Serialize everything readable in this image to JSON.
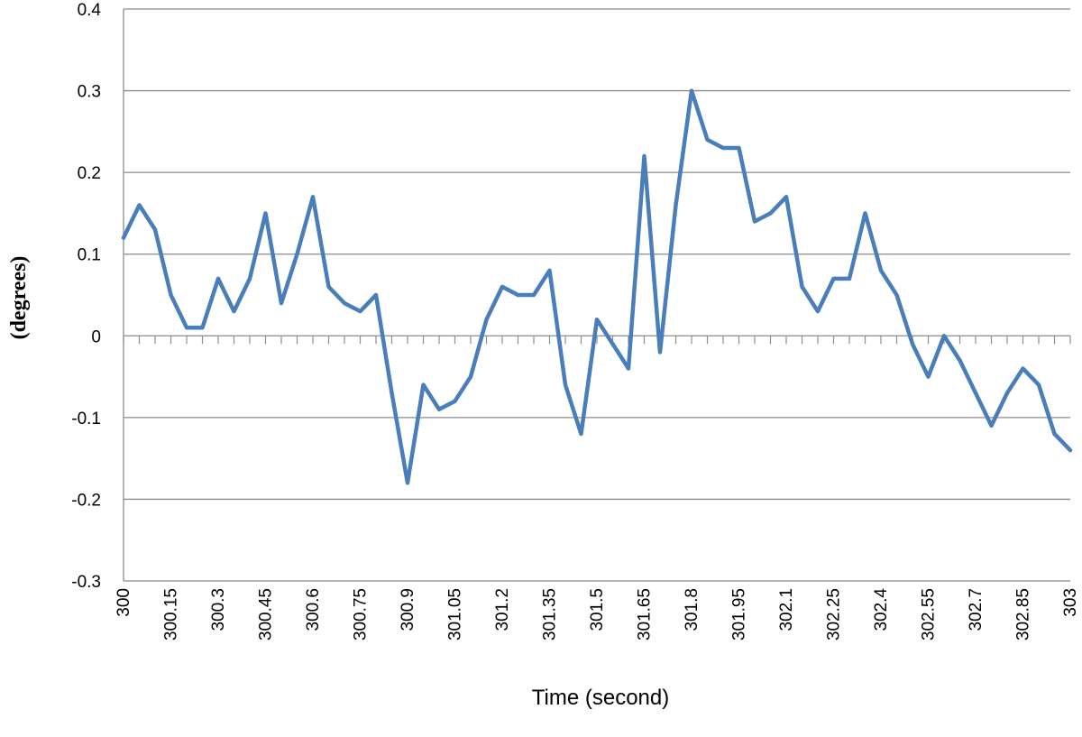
{
  "chart_data": {
    "type": "line",
    "title": "",
    "xlabel": "Time (second)",
    "ylabel": "(degrees)",
    "ylim": [
      -0.3,
      0.4
    ],
    "yticks": [
      -0.3,
      -0.2,
      -0.1,
      0,
      0.1,
      0.2,
      0.3,
      0.4
    ],
    "ytick_labels": [
      "-0.3",
      "-0.2",
      "-0.1",
      "0",
      "0.1",
      "0.2",
      "0.3",
      "0.4"
    ],
    "xlim": [
      300,
      303
    ],
    "xticks": [
      300,
      300.15,
      300.3,
      300.45,
      300.6,
      300.75,
      300.9,
      301.05,
      301.2,
      301.35,
      301.5,
      301.65,
      301.8,
      301.95,
      302.1,
      302.25,
      302.4,
      302.55,
      302.7,
      302.85,
      303
    ],
    "xtick_labels": [
      "300",
      "300.15",
      "300.3",
      "300.45",
      "300.6",
      "300.75",
      "300.9",
      "301.05",
      "301.2",
      "301.35",
      "301.5",
      "301.65",
      "301.8",
      "301.95",
      "302.1",
      "302.25",
      "302.4",
      "302.55",
      "302.7",
      "302.85",
      "303"
    ],
    "grid": true,
    "legend": "none",
    "line_color": "#4A7EBB",
    "series": [
      {
        "x": [
          300,
          300.05,
          300.1,
          300.15,
          300.2,
          300.25,
          300.3,
          300.35,
          300.4,
          300.45,
          300.5,
          300.55,
          300.6,
          300.65,
          300.7,
          300.75,
          300.8,
          300.85,
          300.9,
          300.95,
          301,
          301.05,
          301.1,
          301.15,
          301.2,
          301.25,
          301.3,
          301.35,
          301.4,
          301.45,
          301.5,
          301.55,
          301.6,
          301.65,
          301.7,
          301.75,
          301.8,
          301.85,
          301.9,
          301.95,
          302,
          302.05,
          302.1,
          302.15,
          302.2,
          302.25,
          302.3,
          302.35,
          302.4,
          302.45,
          302.5,
          302.55,
          302.6,
          302.65,
          302.7,
          302.75,
          302.8,
          302.85,
          302.9,
          302.95,
          303
        ],
        "values": [
          0.12,
          0.16,
          0.13,
          0.05,
          0.01,
          0.01,
          0.07,
          0.03,
          0.07,
          0.15,
          0.04,
          0.1,
          0.17,
          0.06,
          0.04,
          0.03,
          0.05,
          -0.07,
          -0.18,
          -0.06,
          -0.09,
          -0.08,
          -0.05,
          0.02,
          0.06,
          0.05,
          0.05,
          0.08,
          -0.06,
          -0.12,
          0.02,
          -0.01,
          -0.04,
          0.22,
          -0.02,
          0.16,
          0.3,
          0.24,
          0.23,
          0.23,
          0.14,
          0.15,
          0.17,
          0.06,
          0.03,
          0.07,
          0.07,
          0.15,
          0.08,
          0.05,
          -0.01,
          -0.05,
          0.0,
          -0.03,
          -0.07,
          -0.11,
          -0.07,
          -0.04,
          -0.06,
          -0.12,
          -0.14
        ]
      }
    ]
  }
}
